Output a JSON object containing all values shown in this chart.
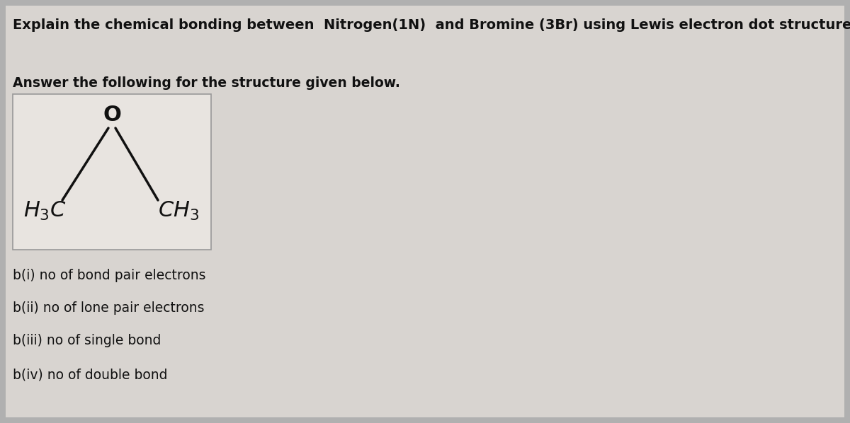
{
  "bg_color": "#b0b0b0",
  "inner_bg": "#d8d4d0",
  "title_text": "Explain the chemical bonding between  Nitrogen(1N)  and Bromine (3Br) using Lewis electron dot structure.",
  "subtitle_text": "Answer the following for the structure given below.",
  "mol_box_bg": "#e8e4e0",
  "mol_box_border": "#999999",
  "O_label": "O",
  "H3C_label": "H₃C",
  "CH3_label": "CH₃",
  "questions": [
    "b(i) no of bond pair electrons",
    "b(ii) no of lone pair electrons",
    "b(iii) no of single bond",
    "b(iv) no of double bond"
  ],
  "text_color": "#111111",
  "line_color": "#111111",
  "title_fontsize": 14,
  "subtitle_fontsize": 13.5,
  "q_fontsize": 13.5,
  "mol_O_fontsize": 22,
  "mol_group_fontsize": 22
}
